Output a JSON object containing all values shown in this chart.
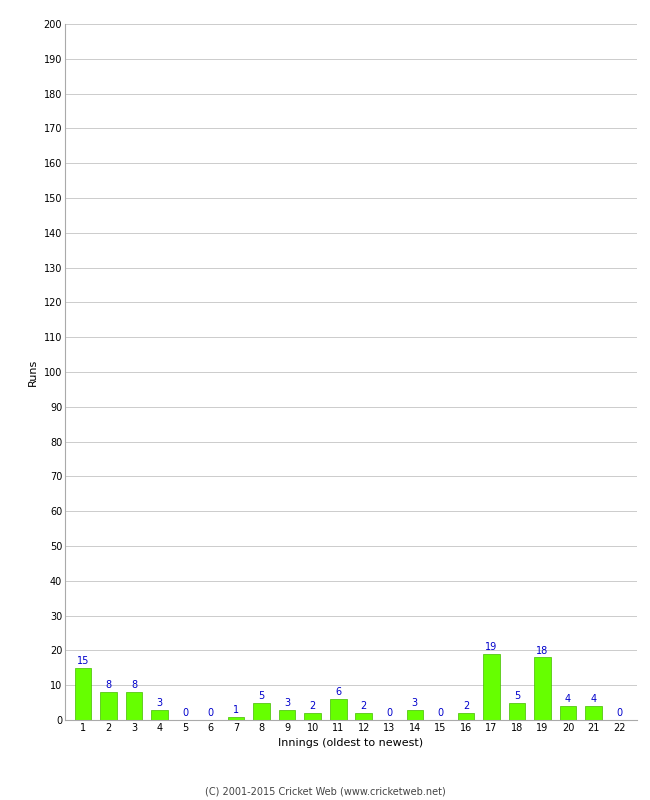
{
  "xlabel": "Innings (oldest to newest)",
  "ylabel": "Runs",
  "categories": [
    "1",
    "2",
    "3",
    "4",
    "5",
    "6",
    "7",
    "8",
    "9",
    "10",
    "11",
    "12",
    "13",
    "14",
    "15",
    "16",
    "17",
    "18",
    "19",
    "20",
    "21",
    "22"
  ],
  "values": [
    15,
    8,
    8,
    3,
    0,
    0,
    1,
    5,
    3,
    2,
    6,
    2,
    0,
    3,
    0,
    2,
    19,
    5,
    18,
    4,
    4,
    0
  ],
  "bar_color": "#66ff00",
  "bar_edge_color": "#44bb00",
  "label_color": "#0000cc",
  "background_color": "#ffffff",
  "grid_color": "#cccccc",
  "ylim": [
    0,
    200
  ],
  "yticks": [
    0,
    10,
    20,
    30,
    40,
    50,
    60,
    70,
    80,
    90,
    100,
    110,
    120,
    130,
    140,
    150,
    160,
    170,
    180,
    190,
    200
  ],
  "label_fontsize": 7,
  "axis_label_fontsize": 8,
  "tick_fontsize": 7,
  "footer": "(C) 2001-2015 Cricket Web (www.cricketweb.net)"
}
